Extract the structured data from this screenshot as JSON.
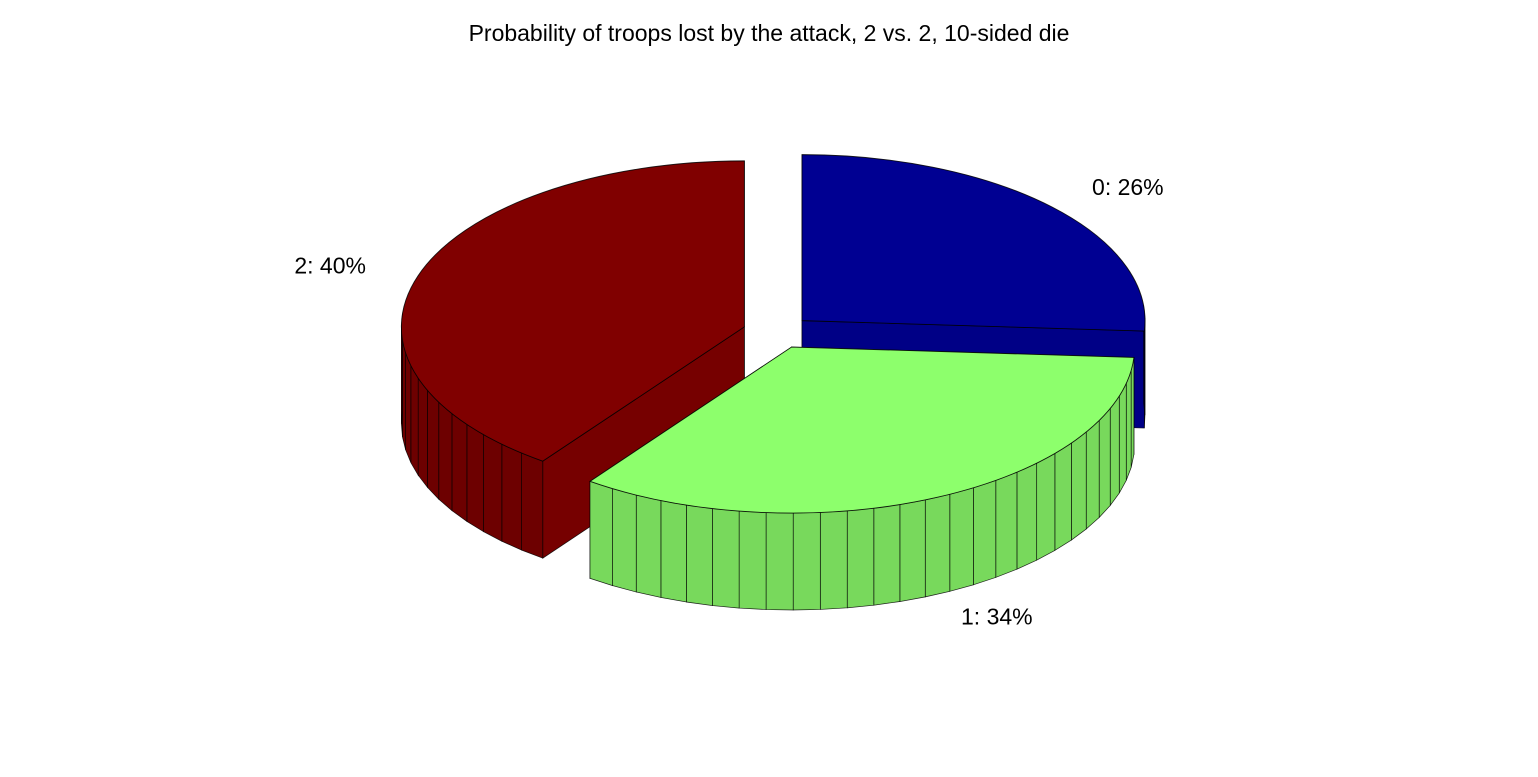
{
  "chart_data": {
    "type": "pie",
    "title": "Probability of troops lost by the attack, 2 vs. 2, 10-sided die",
    "slices": [
      {
        "label": "0: 26%",
        "value": 0.26,
        "color": "#000092",
        "exploded": true
      },
      {
        "label": "1: 34%",
        "value": 0.34,
        "color": "#8dff6c",
        "exploded": true
      },
      {
        "label": "2: 40%",
        "value": 0.4,
        "color": "#800000",
        "exploded": true
      }
    ]
  }
}
